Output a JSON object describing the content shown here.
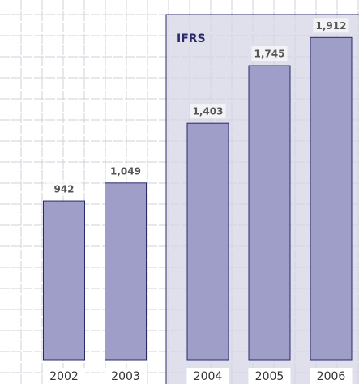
{
  "chart_data": {
    "type": "bar",
    "categories": [
      "2002",
      "2003",
      "2004",
      "2005",
      "2006"
    ],
    "values": [
      942,
      1049,
      1403,
      1745,
      1912
    ],
    "value_labels": [
      "942",
      "1,049",
      "1,403",
      "1,745",
      "1,912"
    ],
    "annotation": "IFRS",
    "color": "#9e9ec8"
  }
}
